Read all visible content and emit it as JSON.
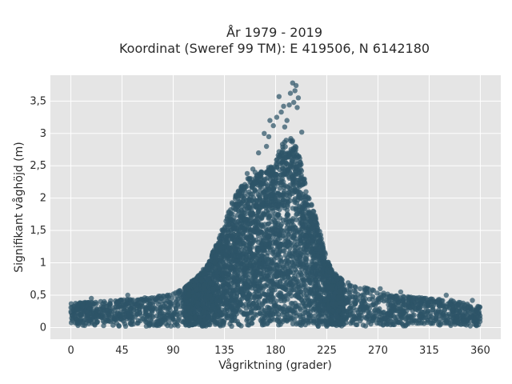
{
  "chart_data": {
    "type": "scatter",
    "title": [
      "År 1979 - 2019",
      "Koordinat (Sweref 99 TM): E 419506, N 6142180"
    ],
    "xlabel": "Vågriktning (grader)",
    "ylabel": "Signifikant våghöjd (m)",
    "xlim": [
      -18,
      378
    ],
    "ylim": [
      -0.18,
      3.9
    ],
    "x_ticks": [
      0,
      45,
      90,
      135,
      180,
      225,
      270,
      315,
      360
    ],
    "x_tick_labels": [
      "0",
      "45",
      "90",
      "135",
      "180",
      "225",
      "270",
      "315",
      "360"
    ],
    "y_ticks": [
      0,
      0.5,
      1,
      1.5,
      2,
      2.5,
      3,
      3.5
    ],
    "y_tick_labels": [
      "0",
      "0,5",
      "1",
      "1,5",
      "2",
      "2,5",
      "3",
      "3,5"
    ],
    "grid": true,
    "marker_color": "#2e5468",
    "background_color": "#e5e5e5",
    "envelope": {
      "direction_deg": [
        0,
        30,
        60,
        90,
        100,
        110,
        120,
        130,
        140,
        150,
        160,
        170,
        180,
        185,
        190,
        195,
        200,
        205,
        210,
        215,
        220,
        225,
        230,
        240,
        250,
        260,
        270,
        280,
        300,
        330,
        360
      ],
      "max_height_m": [
        0.35,
        0.4,
        0.42,
        0.5,
        0.6,
        0.75,
        0.95,
        1.35,
        1.85,
        2.2,
        2.35,
        2.4,
        2.55,
        2.8,
        2.95,
        2.9,
        2.7,
        2.3,
        2.0,
        1.7,
        1.4,
        1.05,
        0.85,
        0.7,
        0.65,
        0.6,
        0.55,
        0.5,
        0.45,
        0.42,
        0.3
      ]
    },
    "outliers": [
      {
        "x": 195,
        "y": 3.78
      },
      {
        "x": 198,
        "y": 3.74
      },
      {
        "x": 197,
        "y": 3.66
      },
      {
        "x": 193,
        "y": 3.62
      },
      {
        "x": 200,
        "y": 3.55
      },
      {
        "x": 183,
        "y": 3.57
      },
      {
        "x": 196,
        "y": 3.48
      },
      {
        "x": 192,
        "y": 3.44
      },
      {
        "x": 199,
        "y": 3.4
      },
      {
        "x": 187,
        "y": 3.42
      },
      {
        "x": 181,
        "y": 3.25
      },
      {
        "x": 190,
        "y": 3.2
      },
      {
        "x": 175,
        "y": 3.2
      },
      {
        "x": 178,
        "y": 3.12
      },
      {
        "x": 185,
        "y": 3.33
      },
      {
        "x": 170,
        "y": 3.0
      },
      {
        "x": 172,
        "y": 2.8
      },
      {
        "x": 165,
        "y": 2.7
      },
      {
        "x": 174,
        "y": 2.95
      },
      {
        "x": 188,
        "y": 3.1
      },
      {
        "x": 203,
        "y": 3.02
      },
      {
        "x": 160,
        "y": 2.45
      },
      {
        "x": 155,
        "y": 2.38
      },
      {
        "x": 162,
        "y": 2.4
      },
      {
        "x": 100,
        "y": 0.6
      },
      {
        "x": 95,
        "y": 0.55
      },
      {
        "x": 85,
        "y": 0.5
      },
      {
        "x": 65,
        "y": 0.46
      },
      {
        "x": 50,
        "y": 0.5
      },
      {
        "x": 18,
        "y": 0.45
      },
      {
        "x": 272,
        "y": 0.6
      },
      {
        "x": 290,
        "y": 0.55
      },
      {
        "x": 330,
        "y": 0.5
      },
      {
        "x": 353,
        "y": 0.42
      }
    ]
  }
}
